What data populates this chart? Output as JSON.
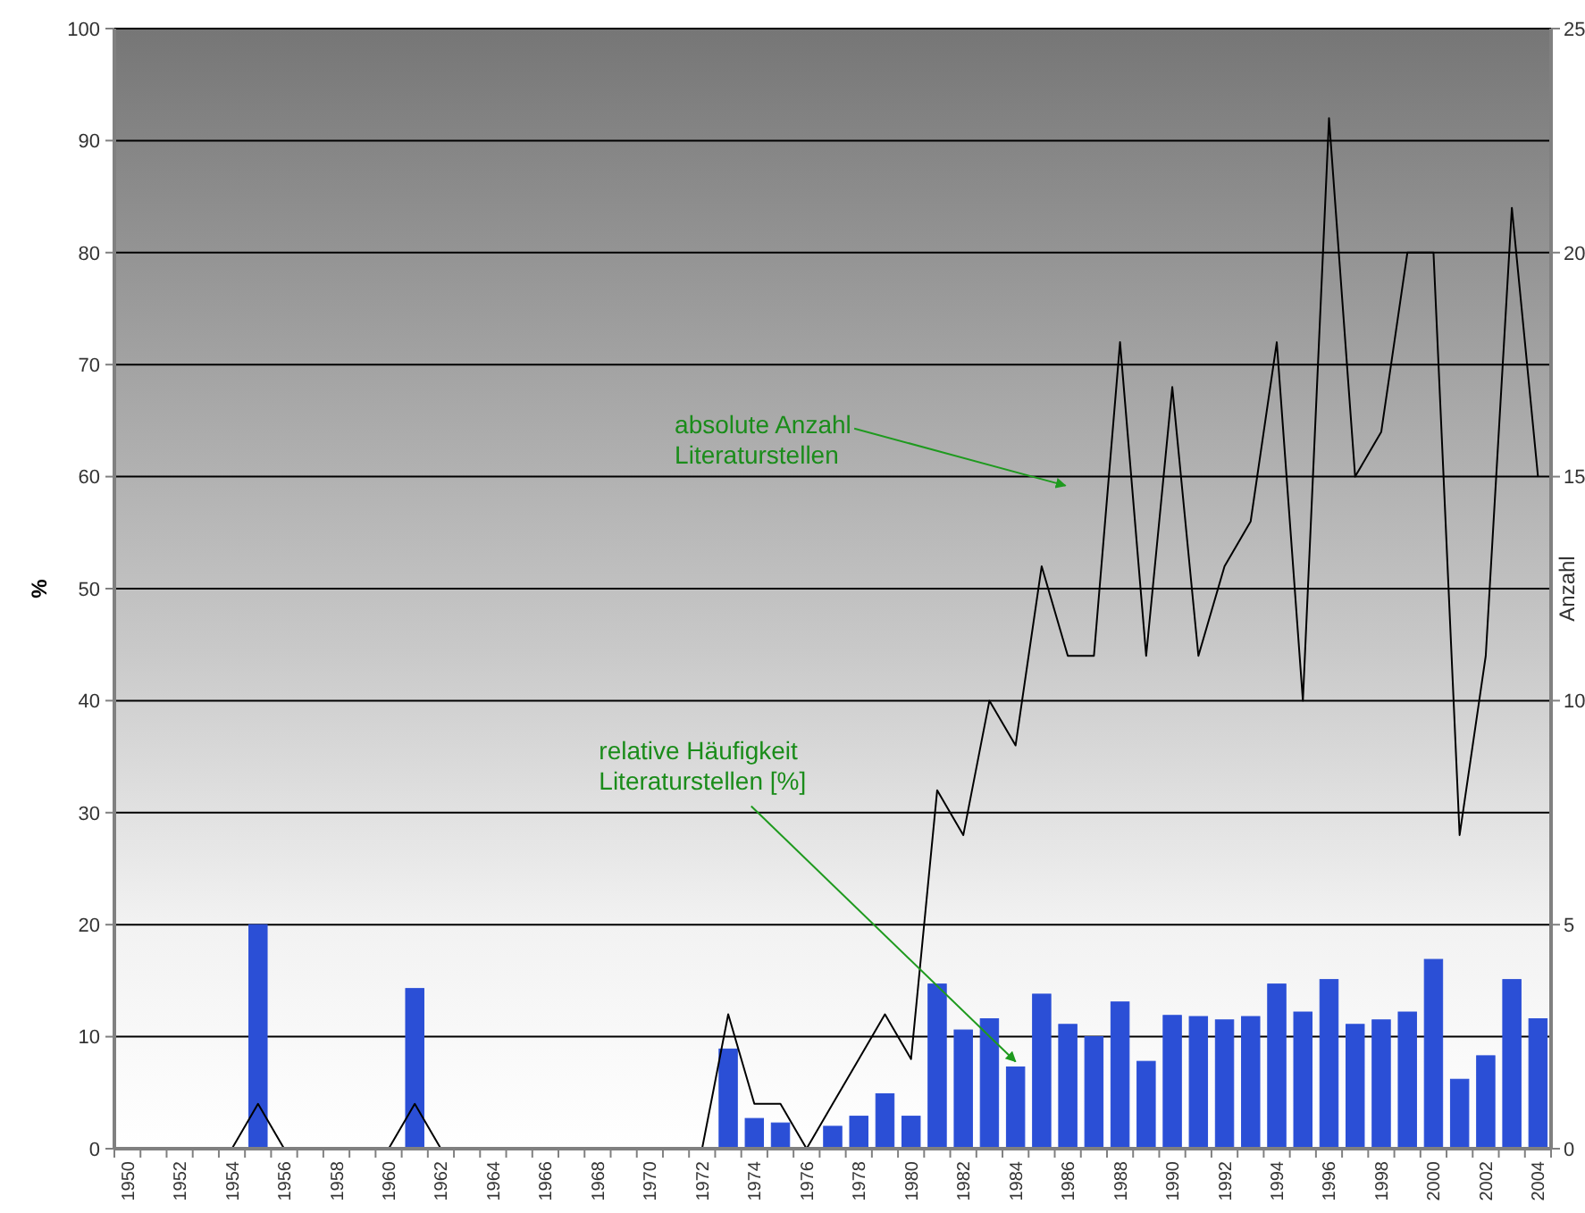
{
  "chart_data": {
    "type": "bar",
    "ylabel": "%",
    "y2label": "Anzahl",
    "categories": [
      "1950",
      null,
      "1952",
      null,
      "1954",
      null,
      "1956",
      null,
      "1958",
      null,
      "1960",
      null,
      "1962",
      null,
      "1964",
      null,
      "1966",
      null,
      "1968",
      null,
      "1970",
      null,
      "1972",
      null,
      "1974",
      null,
      "1976",
      null,
      "1978",
      null,
      "1980",
      null,
      "1982",
      null,
      "1984",
      null,
      "1986",
      null,
      "1988",
      null,
      "1990",
      null,
      "1992",
      null,
      "1994",
      null,
      "1996",
      null,
      "1998",
      null,
      "2000",
      null,
      "2002",
      null,
      "2004"
    ],
    "series": [
      {
        "color": "#2b4fd6",
        "values": [
          0,
          0,
          0,
          0,
          0,
          20,
          0,
          0,
          0,
          0,
          0,
          14.3,
          0,
          0,
          0,
          0,
          0,
          0,
          0,
          0,
          0,
          0,
          0,
          8.9,
          2.7,
          2.3,
          0,
          2.0,
          2.9,
          4.9,
          2.9,
          14.7,
          10.6,
          11.6,
          7.3,
          13.8,
          11.1,
          10.0,
          13.1,
          7.8,
          11.9,
          11.8,
          11.5,
          11.8,
          14.7,
          12.2,
          15.1,
          11.1,
          11.5,
          12.2,
          16.9,
          6.2,
          8.3,
          15.1,
          11.6
        ]
      },
      {
        "type": "line",
        "axis": "y2",
        "color": "#000000",
        "values": [
          null,
          null,
          null,
          null,
          0,
          1,
          0,
          0,
          0,
          0,
          0,
          1,
          0,
          0,
          0,
          0,
          0,
          0,
          0,
          0,
          0,
          0,
          0,
          3,
          1,
          1,
          0,
          1,
          2,
          3,
          2,
          8,
          7,
          10,
          9,
          13,
          11,
          11,
          18,
          11,
          17,
          11,
          13,
          14,
          18,
          10,
          23,
          15,
          16,
          20,
          20,
          7,
          11,
          21,
          15
        ]
      }
    ],
    "ylim": [
      0,
      100
    ],
    "yticks": [
      0,
      10,
      20,
      30,
      40,
      50,
      60,
      70,
      80,
      90,
      100
    ],
    "y2lim": [
      0,
      25
    ],
    "y2ticks": [
      0,
      5,
      10,
      15,
      20,
      25
    ],
    "grid": "y",
    "annotations": [
      "absolute Anzahl\nLiteraturstellen",
      {
        "text": "relative Häufigkeit\nLiteraturstellen [%]",
        "x": "1984",
        "y": 7.3
      }
    ]
  }
}
